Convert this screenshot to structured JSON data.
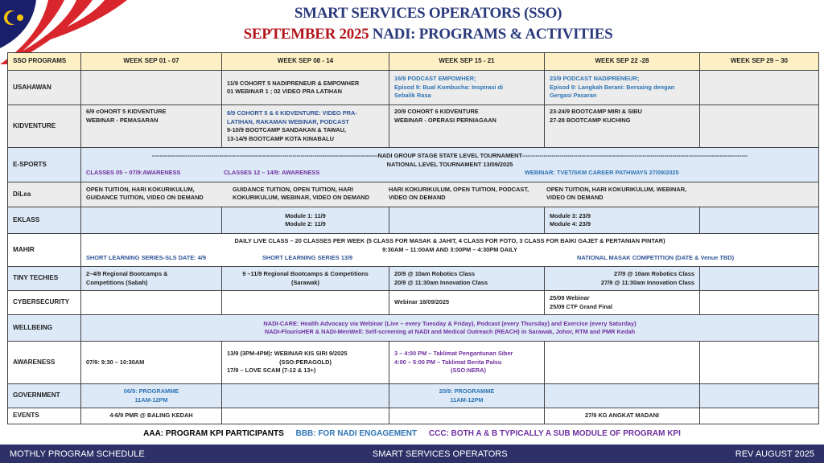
{
  "title": {
    "line1": "SMART SERVICES OPERATORS (SSO)",
    "line2_red": "SEPTEMBER 2025",
    "line2_rest": " NADI: PROGRAMS & ACTIVITIES"
  },
  "header": [
    "SSO PROGRAMS",
    "WEEK SEP 01 - 07",
    "WEEK SEP 08 - 14",
    "WEEK SEP 15 - 21",
    "WEEK SEP 22 -28",
    "WEEK SEP 29 – 30"
  ],
  "rows": {
    "usahawan": {
      "label": "USAHAWAN",
      "c2": [
        "11/9 COHORT 5 NADIPRENEUR & EMPOWHER",
        "01 WEBINAR 1 ; 02 VIDEO PRA LATIHAN"
      ],
      "c3": [
        "16/9 PODCAST EMPOWHER;",
        "Episod 9: Bual Kombucha: Inspirasi di",
        "Sebalik Rasa"
      ],
      "c4": [
        "23/9 PODCAST NADIPRENEUR;",
        "Episod 9: Langkah Berani: Bersaing dengan",
        "Gergasi Pasaran"
      ]
    },
    "kidventure": {
      "label": "KIDVENTURE",
      "c1": [
        "6/9 cOHORT 5 KIDVENTURE",
        "WEBINAR -  PEMASARAN"
      ],
      "c2": [
        "8/9 COHORT 5 & 6 KIDVENTURE: VIDEO PRA-",
        "LATIHAN, RAKAMAN WEBINAR, PODCAST",
        "9-10/9 BOOTCAMP SANDAKAN & TAWAU,",
        "13-14/9 BOOTCAMP KOTA KINABALU"
      ],
      "c3": [
        "20/9 COHORT 6 KIDVENTURE",
        "WEBINAR -  OPERASI PERNIAGAAN"
      ],
      "c4": [
        "23-24/9 BOOTCAMP MIRI & SIBU",
        "27-28 BOOTCAMP KUCHING"
      ]
    },
    "esports": {
      "label": "E-SPORTS",
      "line1": "NADI GROUP STAGE STATE LEVEL TOURNAMENT",
      "line2": "NATIONAL LEVEL TOURNAMENT 13/09/2025",
      "a": "CLASSES 05 – 07/9:AWARENESS",
      "b": "CLASSES 12 – 14/9: AWARENESS",
      "c": "WEBINAR: TVET/SKM CAREER PATHWAYS  27/09/2025"
    },
    "dilea": {
      "label": "DiLea",
      "c1": [
        "OPEN TUITION, HARI KOKURIKULUM,",
        "GUIDANCE TUITION, VIDEO ON DEMAND"
      ],
      "c2": [
        "GUIDANCE TUITION, OPEN TUITION, HARI",
        "KOKURIKULUM, WEBINAR, VIDEO ON DEMAND"
      ],
      "c3": [
        "HARI KOKURIKULUM, OPEN TUITION, PODCAST,",
        "VIDEO ON DEMAND"
      ],
      "c4": [
        "OPEN TUITION, HARI KOKURIKULUM, WEBINAR,",
        "VIDEO ON DEMAND"
      ]
    },
    "eklass": {
      "label": "EKLASS",
      "c2": [
        "Module 1: 11/9",
        "Module 2: 11/9"
      ],
      "c4": [
        "Module 3: 23/9",
        "Module 4: 23/9"
      ]
    },
    "mahir": {
      "label": "MAHIR",
      "line1": "DAILY LIVE CLASS – 20 CLASSES PER WEEK (5 CLASS FOR MASAK & JAHIT, 4 CLASS FOR FOTO, 3 CLASS FOR BAIKI GAJET & PERTANIAN PINTAR)",
      "line2": "9:30AM – 11:00AM AND 3:00PM – 4:30PM DAILY",
      "a": "SHORT LEARNING SERIES-SLS DATE: 4/9",
      "b": "SHORT LEARNING SERIES 13/9",
      "c": "NATIONAL MASAK COMPETITION (DATE & Venue TBD)"
    },
    "tiny": {
      "label": "TINY TECHIES",
      "c1": [
        "2–4/9  Regional Bootcamps &",
        "Competitions (Sabah)"
      ],
      "c2": [
        "9 –11/9  Regional Bootcamps & Competitions",
        "(Sarawak)"
      ],
      "c3": [
        "20/9 @ 10am Robotics Class",
        "20/9 @ 11:30am Innovation Class"
      ],
      "c4": [
        "27/9 @ 10am Robotics Class",
        "27/9 @ 11:30am Innovation Class"
      ]
    },
    "cyber": {
      "label": "CYBERSECURITY",
      "c3": "Webinar 18/09/2025",
      "c4": [
        "25/09 Webinar",
        "25/09 CTF Grand Final"
      ]
    },
    "wellbeing": {
      "label": "WELLBEING",
      "line1": "NADI-CARE: Health Advocacy via Webinar (Live – every Tuesday & Friday), Podcast (every Thursday) and Exercise (every Saturday)",
      "line2": "NADI-FlourisHER & NADI-MenWell: Self-screening at NADI and Medical Outreach (REACH) in Sarawak, Johor, RTM and PMR Kedah"
    },
    "awareness": {
      "label": "AWARENESS",
      "c1": "07/9: 9:30 – 10:30AM",
      "c2": [
        "13/9    (3PM-4PM): WEBINAR KIS SIRI 9/2025",
        "(SSO:PERAGOLD)",
        "17/9 – LOVE SCAM (7-12 & 13+)"
      ],
      "c3": [
        "3 – 4:00 PM – Taklimat Pengantunan Siber",
        "4:00 – 5:00 PM – Taklimat Berita Palsu",
        "(SSO:NERA)"
      ]
    },
    "government": {
      "label": "GOVERNMENT",
      "c1": [
        "06/9: PROGRAMME",
        "11AM-12PM"
      ],
      "c3": [
        "20/9: PROGRAMME",
        "11AM-12PM"
      ]
    },
    "events": {
      "label": "EVENTS",
      "c1": "4-6/9 PMR @ BALING KEDAH",
      "c4": "27/9 KG ANGKAT MADANI"
    }
  },
  "legend": {
    "aaa": "AAA: PROGRAM KPI PARTICIPANTS",
    "bbb": "BBB:  FOR NADI ENGAGEMENT",
    "ccc": "CCC:  BOTH  A & B  TYPICALLY A SUB MODULE OF PROGRAM KPI"
  },
  "footer": {
    "left": "MOTHLY PROGRAM SCHEDULE",
    "center": "SMART SERVICES OPERATORS",
    "right": "REV AUGUST 2025"
  },
  "colors": {
    "header": "#fdf0c4",
    "blue_row": "#dde9f6",
    "gray_row": "#ececec",
    "footer": "#2e3168",
    "blue_text": "#2e74b5",
    "purple_text": "#7030a0",
    "title": "#2a3a7c",
    "title_red": "#b3161c"
  }
}
